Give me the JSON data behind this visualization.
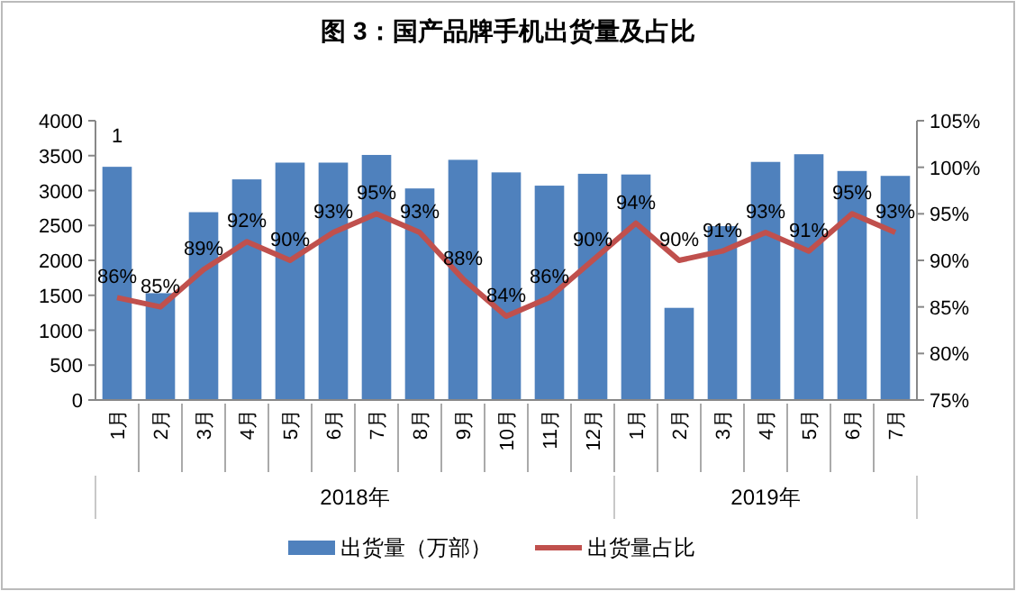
{
  "chart_data": {
    "type": "bar",
    "title": "图 3：国产品牌手机出货量及占比",
    "categories": [
      "1月",
      "2月",
      "3月",
      "4月",
      "5月",
      "6月",
      "7月",
      "8月",
      "9月",
      "10月",
      "11月",
      "12月",
      "1月",
      "2月",
      "3月",
      "4月",
      "5月",
      "6月",
      "7月"
    ],
    "series": [
      {
        "name": "出货量（万部）",
        "color": "#4f81bd",
        "values": [
          3340,
          1530,
          2690,
          3160,
          3400,
          3400,
          3510,
          3030,
          3440,
          3260,
          3070,
          3240,
          3230,
          1320,
          2490,
          3410,
          3520,
          3280,
          3210
        ]
      },
      {
        "name": "出货量占比",
        "type": "line",
        "axis": "y2",
        "color": "#c0504d",
        "marker": "none",
        "values": [
          86,
          85,
          89,
          92,
          90,
          93,
          95,
          93,
          88,
          84,
          86,
          90,
          94,
          90,
          91,
          93,
          91,
          95,
          93
        ],
        "value_labels": [
          "86%",
          "85%",
          "89%",
          "92%",
          "90%",
          "93%",
          "95%",
          "93%",
          "88%",
          "84%",
          "86%",
          "90%",
          "94%",
          "90%",
          "91%",
          "93%",
          "91%",
          "95%",
          "93%"
        ]
      }
    ],
    "ylim": [
      0,
      4000
    ],
    "yticks": [
      0,
      500,
      1000,
      1500,
      2000,
      2500,
      3000,
      3500,
      4000
    ],
    "y2lim": [
      75,
      105
    ],
    "y2ticks": [
      {
        "value": 75,
        "label": "75%"
      },
      {
        "value": 80,
        "label": "80%"
      },
      {
        "value": 85,
        "label": "85%"
      },
      {
        "value": 90,
        "label": "90%"
      },
      {
        "value": 95,
        "label": "95%"
      },
      {
        "value": 100,
        "label": "100%"
      },
      {
        "value": 105,
        "label": "105%"
      }
    ],
    "annotations": [
      "2018年",
      "2019年",
      "1"
    ],
    "legend": "bottom",
    "grid": false
  }
}
